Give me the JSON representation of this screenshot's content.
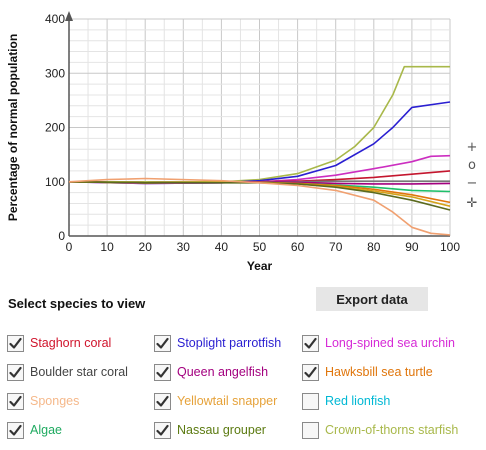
{
  "chart_data": {
    "type": "line",
    "title": "",
    "xlabel": "Year",
    "ylabel": "Percentage of normal population",
    "xlim": [
      0,
      100
    ],
    "ylim": [
      0,
      400
    ],
    "x_ticks": [
      "0",
      "10",
      "20",
      "30",
      "40",
      "50",
      "60",
      "70",
      "80",
      "90",
      "100"
    ],
    "y_ticks": [
      "0",
      "100",
      "200",
      "300",
      "400"
    ],
    "grid": true,
    "series": [
      {
        "name": "Crown-of-thorns starfish",
        "color": "#a8b84a",
        "x": [
          0,
          20,
          40,
          50,
          60,
          70,
          75,
          80,
          85,
          88,
          90,
          100
        ],
        "y": [
          100,
          100,
          100,
          104,
          115,
          140,
          165,
          200,
          260,
          312,
          312,
          312
        ]
      },
      {
        "name": "Stoplight parrotfish",
        "color": "#2a1fd1",
        "x": [
          0,
          20,
          40,
          50,
          60,
          70,
          80,
          85,
          90,
          100
        ],
        "y": [
          100,
          97,
          98,
          102,
          110,
          130,
          170,
          200,
          237,
          247
        ]
      },
      {
        "name": "Long-spined sea urchin",
        "color": "#cc2ec0",
        "x": [
          0,
          20,
          40,
          50,
          60,
          70,
          80,
          90,
          95,
          100
        ],
        "y": [
          100,
          97,
          98,
          100,
          104,
          112,
          124,
          137,
          147,
          148
        ]
      },
      {
        "name": "Staghorn coral",
        "color": "#c4162e",
        "x": [
          0,
          20,
          40,
          50,
          60,
          70,
          80,
          90,
          100
        ],
        "y": [
          100,
          98,
          99,
          100,
          101,
          104,
          108,
          114,
          120
        ]
      },
      {
        "name": "Boulder star coral",
        "color": "#777777",
        "x": [
          0,
          20,
          40,
          50,
          60,
          70,
          80,
          90,
          100
        ],
        "y": [
          100,
          98,
          99,
          100,
          100,
          101,
          101,
          101,
          101
        ]
      },
      {
        "name": "Queen angelfish",
        "color": "#a3007f",
        "x": [
          0,
          20,
          40,
          50,
          60,
          70,
          80,
          90,
          100
        ],
        "y": [
          100,
          98,
          99,
          100,
          99,
          97,
          96,
          96,
          97
        ]
      },
      {
        "name": "Algae",
        "color": "#1fbf6a",
        "x": [
          0,
          20,
          40,
          50,
          60,
          70,
          80,
          90,
          100
        ],
        "y": [
          100,
          98,
          99,
          99,
          97,
          94,
          90,
          84,
          82
        ]
      },
      {
        "name": "Hawksbill sea turtle",
        "color": "#e0760c",
        "x": [
          0,
          20,
          40,
          50,
          60,
          70,
          80,
          90,
          100
        ],
        "y": [
          100,
          98,
          99,
          99,
          97,
          93,
          86,
          76,
          62
        ]
      },
      {
        "name": "Yellowtail snapper",
        "color": "#d4a21a",
        "x": [
          0,
          20,
          40,
          50,
          60,
          70,
          80,
          90,
          100
        ],
        "y": [
          100,
          98,
          99,
          99,
          96,
          91,
          83,
          72,
          55
        ]
      },
      {
        "name": "Nassau grouper",
        "color": "#5b6a1e",
        "x": [
          0,
          20,
          40,
          50,
          60,
          70,
          80,
          90,
          100
        ],
        "y": [
          100,
          98,
          98,
          98,
          96,
          90,
          80,
          66,
          48
        ]
      },
      {
        "name": "Sponges",
        "color": "#f0a070",
        "x": [
          0,
          10,
          20,
          40,
          50,
          60,
          70,
          80,
          85,
          90,
          95,
          100
        ],
        "y": [
          100,
          104,
          106,
          102,
          98,
          93,
          84,
          66,
          44,
          16,
          5,
          2
        ]
      }
    ]
  },
  "controls": {
    "zoom_in": "+",
    "zoom_reset": "o",
    "zoom_out": "−",
    "pan": "✛"
  },
  "panel": {
    "title": "Select species to view",
    "export_label": "Export data"
  },
  "species": [
    {
      "label": "Staghorn coral",
      "color": "#d0142c",
      "checked": true
    },
    {
      "label": "Boulder star coral",
      "color": "#444444",
      "checked": true
    },
    {
      "label": "Sponges",
      "color": "#f5b88a",
      "checked": true
    },
    {
      "label": "Algae",
      "color": "#1faa60",
      "checked": true
    },
    {
      "label": "Stoplight parrotfish",
      "color": "#2a1fd1",
      "checked": true
    },
    {
      "label": "Queen angelfish",
      "color": "#a3007f",
      "checked": true
    },
    {
      "label": "Yellowtail snapper",
      "color": "#e6a23a",
      "checked": true
    },
    {
      "label": "Nassau grouper",
      "color": "#5b7a10",
      "checked": true
    },
    {
      "label": "Long-spined sea urchin",
      "color": "#d62ad6",
      "checked": true
    },
    {
      "label": "Hawksbill sea turtle",
      "color": "#e0760c",
      "checked": true
    },
    {
      "label": "Red lionfish",
      "color": "#00b8d4",
      "checked": false
    },
    {
      "label": "Crown-of-thorns starfish",
      "color": "#a8b84a",
      "checked": false
    }
  ]
}
